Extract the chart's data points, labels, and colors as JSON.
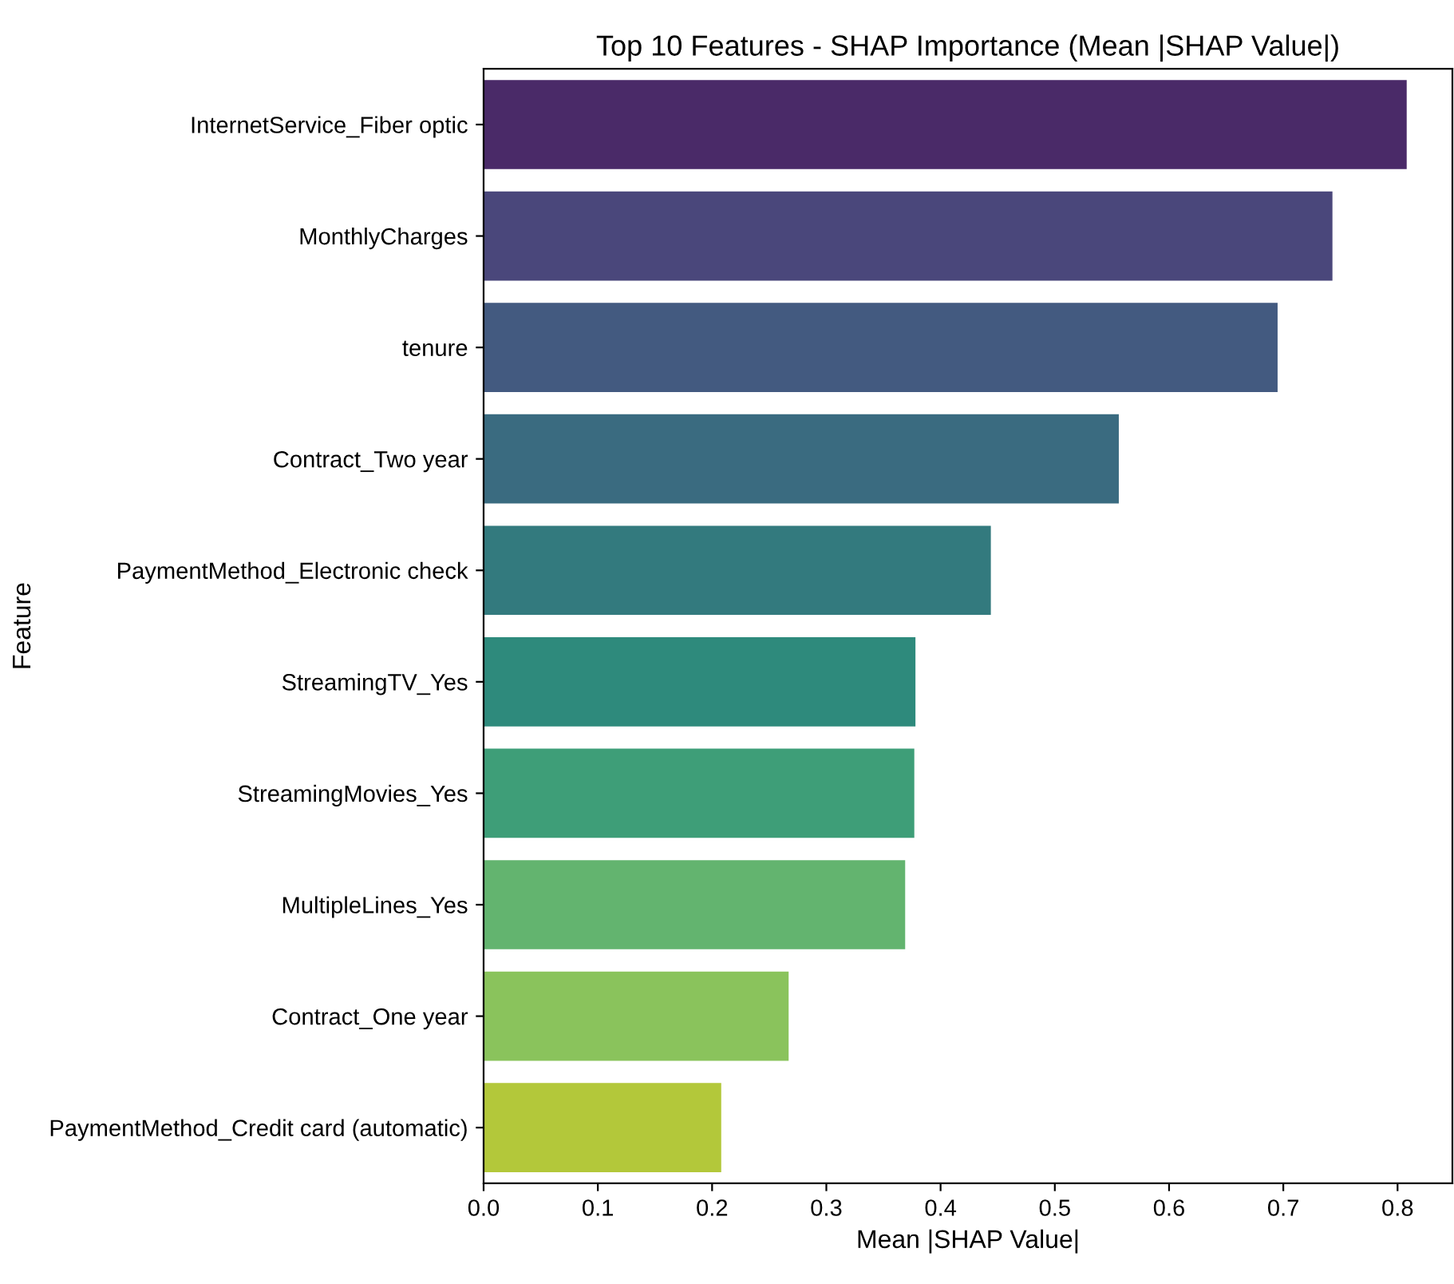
{
  "chart_data": {
    "type": "bar",
    "orientation": "horizontal",
    "title": "Top 10 Features - SHAP Importance (Mean |SHAP Value|)",
    "xlabel": "Mean |SHAP Value|",
    "ylabel": "Feature",
    "categories": [
      "InternetService_Fiber optic",
      "MonthlyCharges",
      "tenure",
      "Contract_Two year",
      "PaymentMethod_Electronic check",
      "StreamingTV_Yes",
      "StreamingMovies_Yes",
      "MultipleLines_Yes",
      "Contract_One year",
      "PaymentMethod_Credit card (automatic)"
    ],
    "values": [
      0.808,
      0.743,
      0.695,
      0.556,
      0.444,
      0.378,
      0.377,
      0.369,
      0.267,
      0.208
    ],
    "colors": [
      "#4a2a68",
      "#4a477b",
      "#435a80",
      "#3a6b80",
      "#337a7e",
      "#2e8a7c",
      "#3e9e78",
      "#63b46f",
      "#8ac35c",
      "#b3c83a"
    ],
    "xlim": [
      0,
      0.848
    ],
    "xticks": [
      {
        "value": 0,
        "label": "0.0"
      },
      0.1,
      0.2,
      0.3,
      0.4,
      0.5,
      0.6,
      0.7,
      0.8
    ],
    "grid": false
  }
}
